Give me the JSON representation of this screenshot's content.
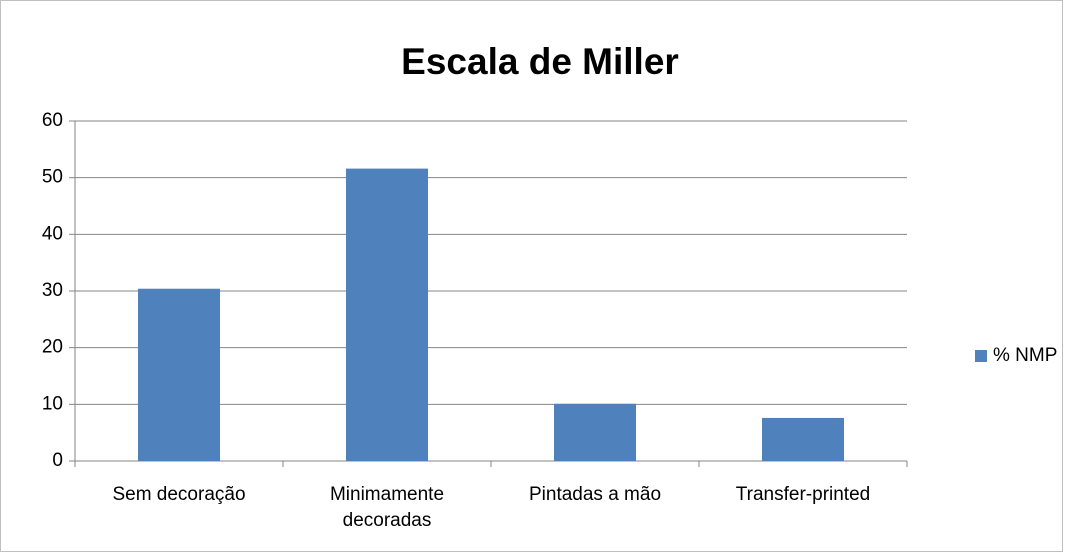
{
  "chart_data": {
    "type": "bar",
    "title": "Escala de Miller",
    "categories": [
      "Sem decoração",
      "Minimamente decoradas",
      "Pintadas a mão",
      "Transfer-printed"
    ],
    "series": [
      {
        "name": "% NMP",
        "color": "#4f81bd",
        "values": [
          30.4,
          51.6,
          10.1,
          7.6
        ]
      }
    ],
    "ylim": [
      0,
      60
    ],
    "yticks": [
      0,
      10,
      20,
      30,
      40,
      50,
      60
    ],
    "grid": true,
    "legend": "right"
  }
}
